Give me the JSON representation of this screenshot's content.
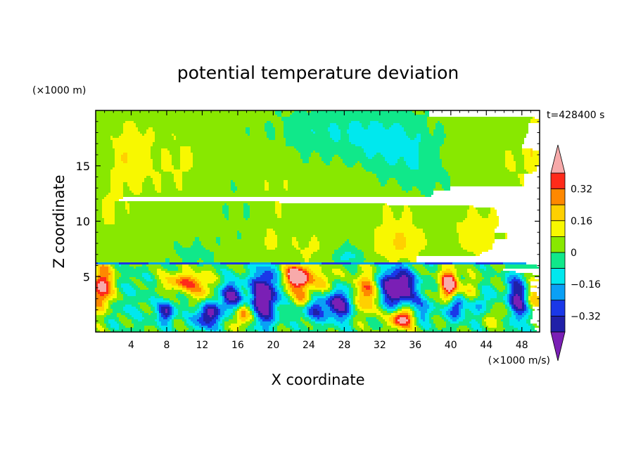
{
  "chart_data": {
    "type": "heatmap",
    "title": "potential temperature deviation",
    "xlabel": "X coordinate",
    "ylabel": "Z coordinate",
    "x_unit": "(×1000 m/s)",
    "y_unit": "(×1000 m)",
    "time_label": "t=428400 s",
    "xlim": [
      0,
      50
    ],
    "ylim": [
      0,
      20
    ],
    "x_ticks": [
      4,
      8,
      12,
      16,
      20,
      24,
      28,
      32,
      36,
      40,
      44,
      48
    ],
    "x_tick_labels": [
      "4",
      "8",
      "12",
      "16",
      "20",
      "24",
      "28",
      "32",
      "36",
      "40",
      "44",
      "48"
    ],
    "y_ticks": [
      5,
      10,
      15
    ],
    "y_tick_labels": [
      "5",
      "10",
      "15"
    ],
    "colorbar": {
      "levels": [
        -0.4,
        -0.32,
        -0.24,
        -0.16,
        -0.08,
        0,
        0.08,
        0.16,
        0.24,
        0.32,
        0.4
      ],
      "labeled_levels": [
        0.32,
        0.16,
        0,
        -0.16,
        -0.32
      ],
      "labels": [
        "0.32",
        "0.16",
        "0",
        "−0.16",
        "−0.32"
      ],
      "colors": [
        "#7a1fb5",
        "#2020a8",
        "#1a38e8",
        "#0aa0f5",
        "#00e8ee",
        "#10e88a",
        "#88e800",
        "#f8f800",
        "#ffd000",
        "#ff8800",
        "#ff2a1a",
        "#f7aaaa"
      ]
    }
  }
}
